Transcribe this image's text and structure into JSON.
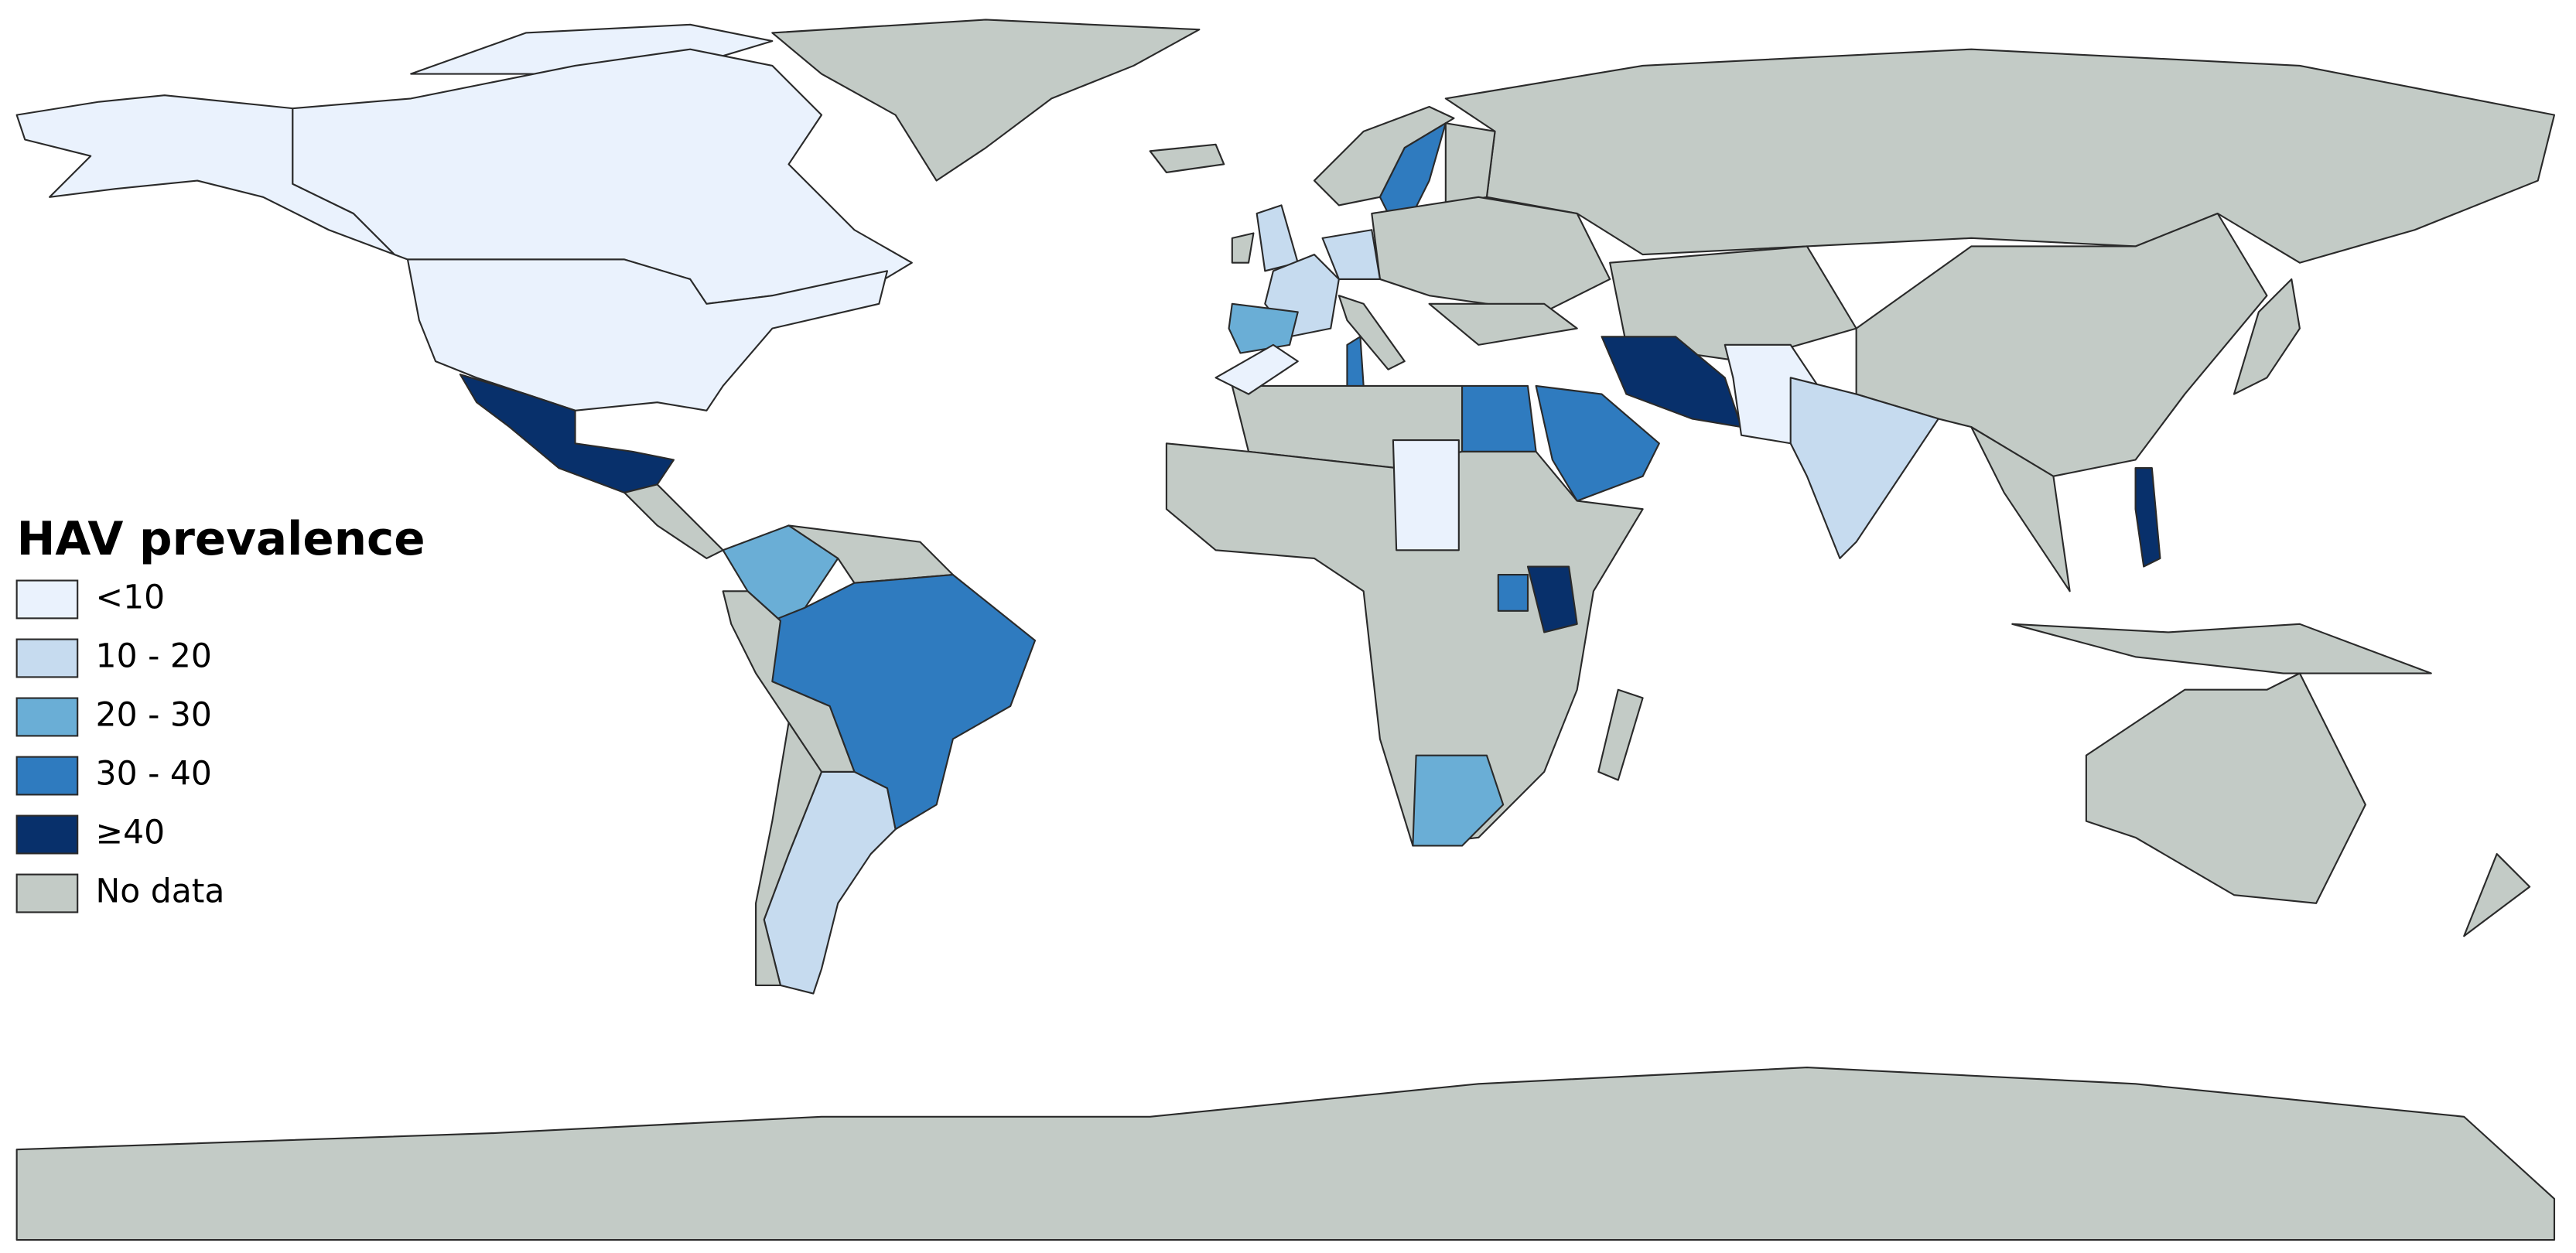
{
  "legend": {
    "title": "HAV prevalence",
    "items": [
      {
        "label": "<10",
        "color": "#eaf2fd"
      },
      {
        "label": "10 - 20",
        "color": "#c6dbef"
      },
      {
        "label": "20 - 30",
        "color": "#6aaed6"
      },
      {
        "label": "30 - 40",
        "color": "#2f7bbf"
      },
      {
        "label": "≥40",
        "color": "#08306b"
      },
      {
        "label": "No data",
        "color": "#c3cbc6"
      }
    ]
  }
}
